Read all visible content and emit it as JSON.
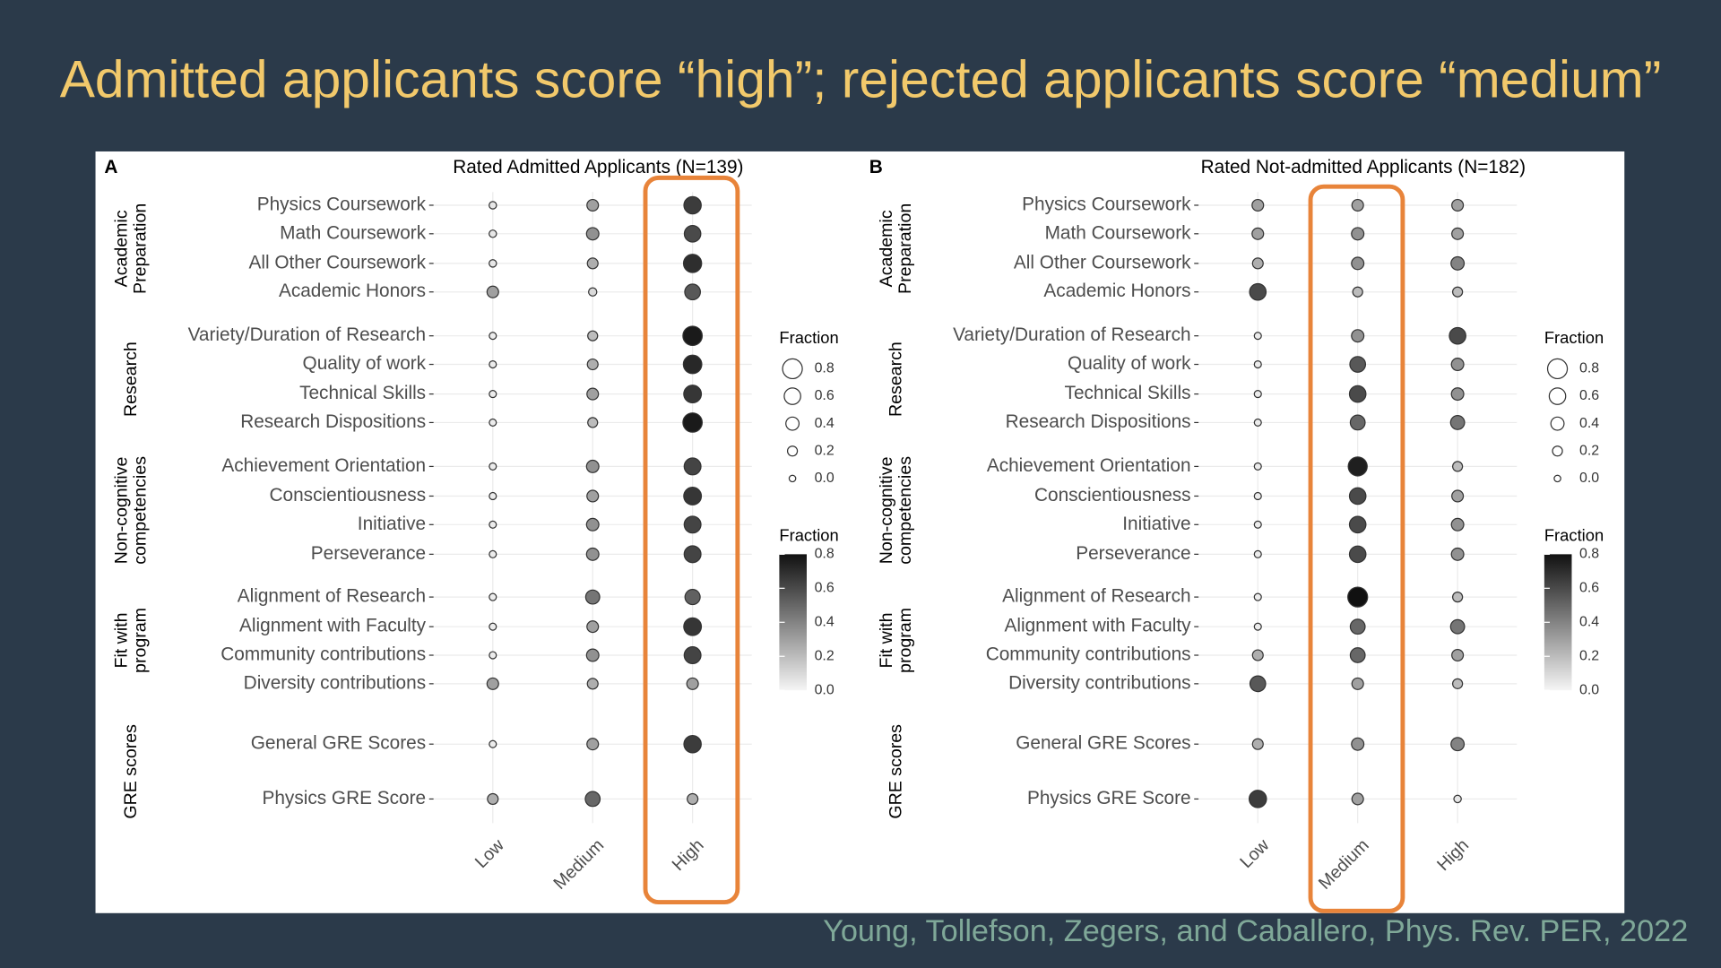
{
  "slide": {
    "title": "Admitted applicants score “high”; rejected applicants score “medium”",
    "citation": "Young, Tollefson, Zegers, and Caballero, Phys. Rev. PER, 2022"
  },
  "chart_data": [
    {
      "type": "dot",
      "panel": "A",
      "title": "Rated Admitted Applicants (N=139)",
      "x_categories": [
        "Low",
        "Medium",
        "High"
      ],
      "highlight": "High",
      "highlight_color": "#e8843a",
      "sizelim": [
        0,
        0.8
      ],
      "colorlim": [
        0,
        0.8
      ],
      "grid": true,
      "size_legend": {
        "title": "Fraction",
        "ticks": [
          0.8,
          0.6,
          0.4,
          0.2,
          {
            "value": 0,
            "label": "0.0"
          }
        ]
      },
      "color_legend": {
        "title": "Fraction",
        "ticks": [
          0.8,
          0.6,
          0.4,
          0.2,
          {
            "value": 0,
            "label": "0.0"
          }
        ]
      },
      "groups": [
        {
          "name": [
            "Academic",
            "Preparation"
          ],
          "rows": [
            {
              "label": "Physics Coursework",
              "values": [
                0.05,
                0.3,
                0.65
              ]
            },
            {
              "label": "Math Coursework",
              "values": [
                0.05,
                0.35,
                0.6
              ]
            },
            {
              "label": "All Other Coursework",
              "values": [
                0.05,
                0.25,
                0.7
              ]
            },
            {
              "label": "Academic Honors",
              "values": [
                0.3,
                0.1,
                0.55
              ]
            }
          ]
        },
        {
          "name": [
            "Research"
          ],
          "rows": [
            {
              "label": "Variety/Duration of Research",
              "values": [
                0.03,
                0.2,
                0.77
              ]
            },
            {
              "label": "Quality of work",
              "values": [
                0.03,
                0.25,
                0.72
              ]
            },
            {
              "label": "Technical Skills",
              "values": [
                0.03,
                0.3,
                0.67
              ]
            },
            {
              "label": "Research Dispositions",
              "values": [
                0.03,
                0.2,
                0.77
              ]
            }
          ]
        },
        {
          "name": [
            "Non-cognitive",
            "competencies"
          ],
          "rows": [
            {
              "label": "Achievement Orientation",
              "values": [
                0.03,
                0.35,
                0.62
              ]
            },
            {
              "label": "Conscientiousness",
              "values": [
                0.03,
                0.3,
                0.67
              ]
            },
            {
              "label": "Initiative",
              "values": [
                0.03,
                0.35,
                0.62
              ]
            },
            {
              "label": "Perseverance",
              "values": [
                0.03,
                0.35,
                0.62
              ]
            }
          ]
        },
        {
          "name": [
            "Fit with",
            "program"
          ],
          "rows": [
            {
              "label": "Alignment of Research",
              "values": [
                0.03,
                0.45,
                0.52
              ]
            },
            {
              "label": "Alignment with Faculty",
              "values": [
                0.03,
                0.3,
                0.67
              ]
            },
            {
              "label": "Community contributions",
              "values": [
                0.03,
                0.35,
                0.62
              ]
            },
            {
              "label": "Diversity contributions",
              "values": [
                0.3,
                0.25,
                0.3
              ]
            }
          ]
        },
        {
          "name": [
            "GRE scores"
          ],
          "rows": [
            {
              "label": "General GRE Scores",
              "values": [
                0.03,
                0.3,
                0.65
              ]
            },
            {
              "label": "Physics GRE Score",
              "values": [
                0.25,
                0.5,
                0.25
              ]
            }
          ]
        }
      ]
    },
    {
      "type": "dot",
      "panel": "B",
      "title": "Rated Not-admitted Applicants (N=182)",
      "x_categories": [
        "Low",
        "Medium",
        "High"
      ],
      "highlight": "Medium",
      "highlight_color": "#e8843a",
      "sizelim": [
        0,
        0.8
      ],
      "colorlim": [
        0,
        0.8
      ],
      "grid": true,
      "size_legend": {
        "title": "Fraction",
        "ticks": [
          0.8,
          0.6,
          0.4,
          0.2,
          {
            "value": 0,
            "label": "0.0"
          }
        ]
      },
      "color_legend": {
        "title": "Fraction",
        "ticks": [
          0.8,
          0.6,
          0.4,
          0.2,
          {
            "value": 0,
            "label": "0.0"
          }
        ]
      },
      "groups": [
        {
          "name": [
            "Academic",
            "Preparation"
          ],
          "rows": [
            {
              "label": "Physics Coursework",
              "values": [
                0.3,
                0.3,
                0.3
              ]
            },
            {
              "label": "Math Coursework",
              "values": [
                0.3,
                0.35,
                0.3
              ]
            },
            {
              "label": "All Other Coursework",
              "values": [
                0.25,
                0.35,
                0.4
              ]
            },
            {
              "label": "Academic Honors",
              "values": [
                0.6,
                0.2,
                0.2
              ]
            }
          ]
        },
        {
          "name": [
            "Research"
          ],
          "rows": [
            {
              "label": "Variety/Duration of Research",
              "values": [
                0.03,
                0.35,
                0.6
              ]
            },
            {
              "label": "Quality of work",
              "values": [
                0.03,
                0.55,
                0.35
              ]
            },
            {
              "label": "Technical Skills",
              "values": [
                0.03,
                0.6,
                0.35
              ]
            },
            {
              "label": "Research Dispositions",
              "values": [
                0.03,
                0.5,
                0.45
              ]
            }
          ]
        },
        {
          "name": [
            "Non-cognitive",
            "competencies"
          ],
          "rows": [
            {
              "label": "Achievement Orientation",
              "values": [
                0.03,
                0.75,
                0.2
              ]
            },
            {
              "label": "Conscientiousness",
              "values": [
                0.03,
                0.6,
                0.3
              ]
            },
            {
              "label": "Initiative",
              "values": [
                0.03,
                0.6,
                0.35
              ]
            },
            {
              "label": "Perseverance",
              "values": [
                0.03,
                0.6,
                0.35
              ]
            }
          ]
        },
        {
          "name": [
            "Fit with",
            "program"
          ],
          "rows": [
            {
              "label": "Alignment of Research",
              "values": [
                0.03,
                0.8,
                0.2
              ]
            },
            {
              "label": "Alignment with Faculty",
              "values": [
                0.03,
                0.5,
                0.45
              ]
            },
            {
              "label": "Community contributions",
              "values": [
                0.25,
                0.5,
                0.3
              ]
            },
            {
              "label": "Diversity contributions",
              "values": [
                0.55,
                0.3,
                0.2
              ]
            }
          ]
        },
        {
          "name": [
            "GRE scores"
          ],
          "rows": [
            {
              "label": "General GRE Scores",
              "values": [
                0.25,
                0.35,
                0.4
              ]
            },
            {
              "label": "Physics GRE Score",
              "values": [
                0.65,
                0.3,
                0.05
              ]
            }
          ]
        }
      ]
    }
  ]
}
